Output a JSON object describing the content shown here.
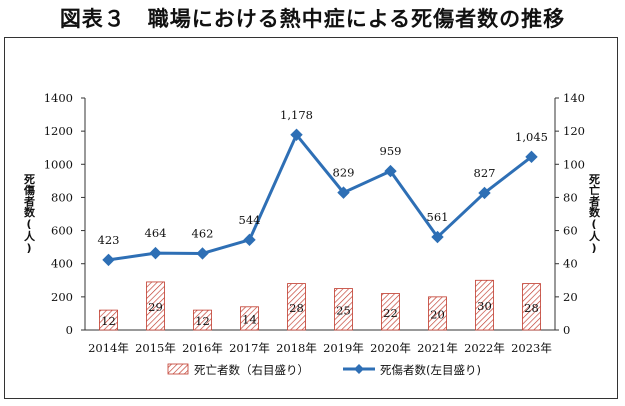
{
  "title": "図表３　職場における熱中症による死傷者数の推移",
  "chart_data": {
    "type": "bar+line",
    "categories": [
      "2014年",
      "2015年",
      "2016年",
      "2017年",
      "2018年",
      "2019年",
      "2020年",
      "2021年",
      "2022年",
      "2023年"
    ],
    "series": [
      {
        "name": "死亡者数（右目盛り）",
        "type": "bar",
        "axis": "right",
        "values": [
          12,
          29,
          12,
          14,
          28,
          25,
          22,
          20,
          30,
          28
        ],
        "labels": [
          "12",
          "29",
          "12",
          "14",
          "28",
          "25",
          "22",
          "20",
          "30",
          "28"
        ],
        "color": "#c0392b"
      },
      {
        "name": "死傷者数(左目盛り)",
        "type": "line",
        "axis": "left",
        "values": [
          423,
          464,
          462,
          544,
          1178,
          829,
          959,
          561,
          827,
          1045
        ],
        "labels": [
          "423",
          "464",
          "462",
          "544",
          "1,178",
          "829",
          "959",
          "561",
          "827",
          "1,045"
        ],
        "color": "#2e6fb5"
      }
    ],
    "y_left": {
      "label": "死傷者数(人)",
      "ylim": [
        0,
        1400
      ],
      "ticks": [
        "0",
        "200",
        "400",
        "600",
        "800",
        "1000",
        "1200",
        "1400"
      ]
    },
    "y_right": {
      "label": "死亡者数(人)",
      "ylim": [
        0,
        140
      ],
      "ticks": [
        "0",
        "20",
        "40",
        "60",
        "80",
        "100",
        "120",
        "140"
      ]
    },
    "grid": false,
    "legend": "bottom"
  }
}
